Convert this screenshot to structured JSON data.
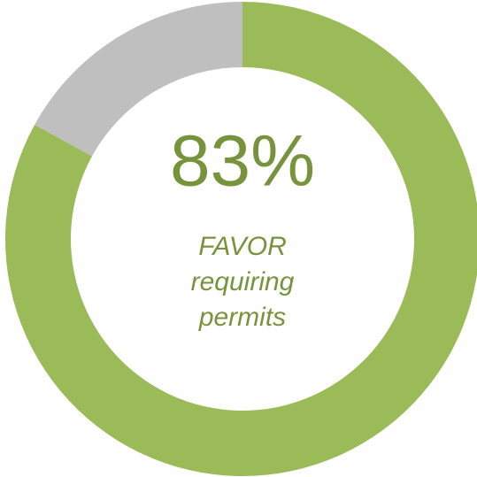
{
  "chart_data": {
    "type": "donut",
    "values": [
      83,
      17
    ],
    "value_labels": [
      "83%",
      null
    ],
    "colors": [
      "#9bbb59",
      "#bfbfbf"
    ],
    "center_text": [
      "FAVOR",
      "requiring",
      "permits"
    ]
  }
}
